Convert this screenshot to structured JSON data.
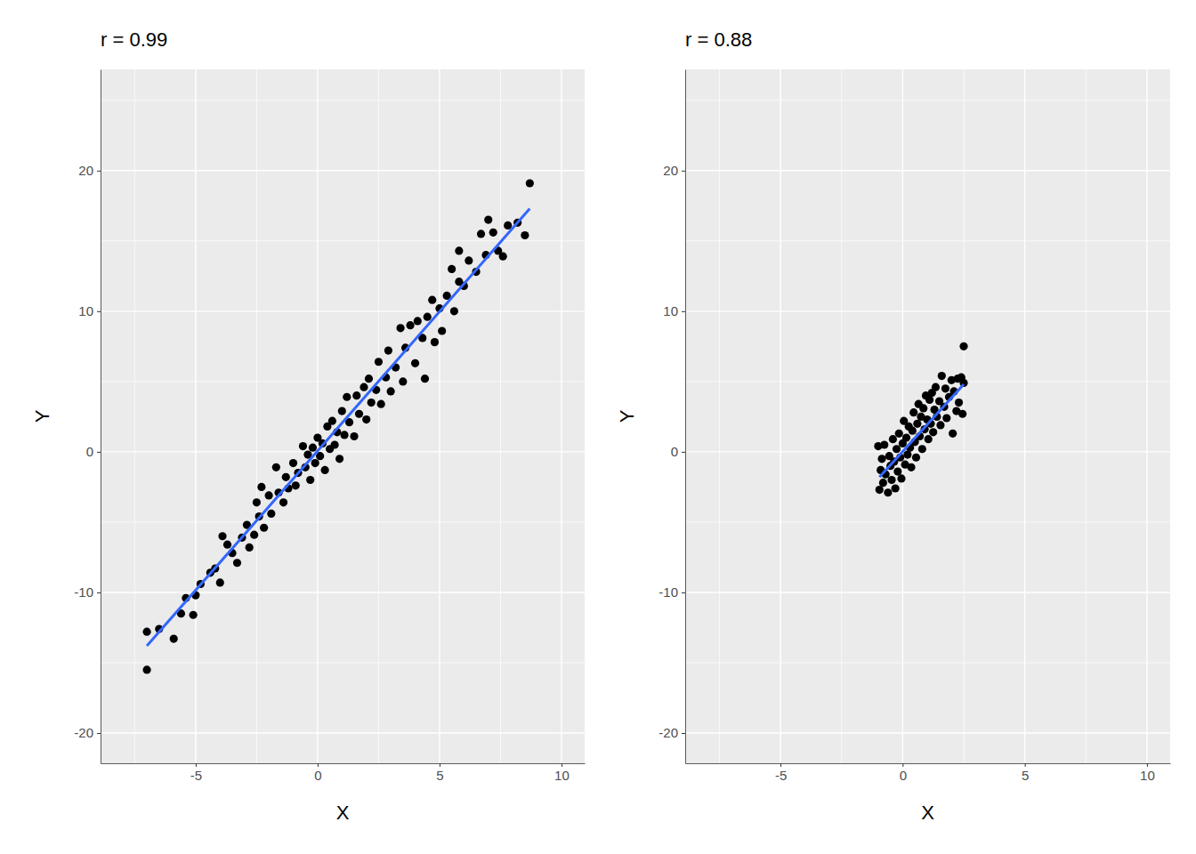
{
  "chart_data": [
    {
      "type": "scatter",
      "title": "r = 0.99",
      "x_label": "X",
      "y_label": "Y",
      "xlim": [
        -8.9,
        10.95
      ],
      "ylim": [
        -22.15,
        27.2
      ],
      "xticks": [
        -5,
        0,
        5,
        10
      ],
      "yticks": [
        -20,
        -10,
        0,
        10,
        20
      ],
      "grid": true,
      "series": [
        {
          "type": "scatter",
          "marker": "circle",
          "color": "#000000",
          "x": [
            -7.0,
            -7.0,
            -6.5,
            -5.9,
            -5.6,
            -5.4,
            -5.1,
            -5.0,
            -4.8,
            -4.4,
            -4.2,
            -4.0,
            -3.9,
            -3.7,
            -3.5,
            -3.3,
            -3.1,
            -2.9,
            -2.8,
            -2.6,
            -2.5,
            -2.4,
            -2.3,
            -2.2,
            -2.0,
            -1.9,
            -1.7,
            -1.6,
            -1.4,
            -1.3,
            -1.2,
            -1.0,
            -0.9,
            -0.8,
            -0.6,
            -0.5,
            -0.4,
            -0.3,
            -0.2,
            -0.1,
            0.0,
            0.1,
            0.2,
            0.3,
            0.4,
            0.5,
            0.6,
            0.7,
            0.8,
            0.9,
            1.0,
            1.1,
            1.2,
            1.3,
            1.5,
            1.6,
            1.7,
            1.9,
            2.0,
            2.1,
            2.2,
            2.4,
            2.5,
            2.6,
            2.8,
            2.9,
            3.0,
            3.2,
            3.4,
            3.5,
            3.6,
            3.8,
            4.0,
            4.1,
            4.3,
            4.4,
            4.5,
            4.7,
            4.8,
            5.0,
            5.1,
            5.3,
            5.5,
            5.6,
            5.8,
            5.8,
            6.0,
            6.2,
            6.5,
            6.7,
            6.9,
            7.0,
            7.2,
            7.4,
            7.6,
            7.8,
            8.2,
            8.5,
            8.7
          ],
          "values": [
            -15.5,
            -12.8,
            -12.6,
            -13.3,
            -11.5,
            -10.4,
            -11.6,
            -10.2,
            -9.4,
            -8.6,
            -8.3,
            -9.3,
            -6.0,
            -6.6,
            -7.2,
            -7.9,
            -6.1,
            -5.2,
            -6.8,
            -5.9,
            -3.6,
            -4.6,
            -2.5,
            -5.4,
            -3.1,
            -4.4,
            -1.1,
            -2.9,
            -3.6,
            -1.8,
            -2.6,
            -0.8,
            -2.4,
            -1.5,
            0.4,
            -1.1,
            -0.2,
            -2.0,
            0.3,
            -0.8,
            1.0,
            -0.3,
            0.6,
            -1.3,
            1.8,
            0.2,
            2.2,
            0.5,
            1.4,
            -0.5,
            2.9,
            1.2,
            3.9,
            2.1,
            1.1,
            4.0,
            2.7,
            4.6,
            2.3,
            5.2,
            3.5,
            4.4,
            6.4,
            3.4,
            5.3,
            7.2,
            4.3,
            6.0,
            8.8,
            5.0,
            7.4,
            9.0,
            6.3,
            9.3,
            8.1,
            5.2,
            9.6,
            10.8,
            7.8,
            10.2,
            8.6,
            11.1,
            13.0,
            10.0,
            12.1,
            14.3,
            11.8,
            13.6,
            12.8,
            15.5,
            14.0,
            16.5,
            15.6,
            14.3,
            13.9,
            16.1,
            16.3,
            15.4,
            19.1
          ]
        },
        {
          "type": "line",
          "line_style": "solid",
          "color": "#3366FF",
          "x": [
            -7.0,
            8.7
          ],
          "values": [
            -13.8,
            17.3
          ]
        }
      ]
    },
    {
      "type": "scatter",
      "title": "r = 0.88",
      "x_label": "X",
      "y_label": "Y",
      "xlim": [
        -8.9,
        10.95
      ],
      "ylim": [
        -22.15,
        27.2
      ],
      "xticks": [
        -5,
        0,
        5,
        10
      ],
      "yticks": [
        -20,
        -10,
        0,
        10,
        20
      ],
      "grid": true,
      "series": [
        {
          "type": "scatter",
          "marker": "circle",
          "color": "#000000",
          "x": [
            -1.0,
            -0.95,
            -0.9,
            -0.85,
            -0.8,
            -0.75,
            -0.7,
            -0.6,
            -0.55,
            -0.5,
            -0.45,
            -0.4,
            -0.35,
            -0.3,
            -0.25,
            -0.2,
            -0.15,
            -0.1,
            -0.05,
            0.0,
            0.05,
            0.1,
            0.15,
            0.2,
            0.25,
            0.3,
            0.35,
            0.4,
            0.45,
            0.5,
            0.55,
            0.6,
            0.65,
            0.7,
            0.75,
            0.8,
            0.85,
            0.9,
            0.95,
            1.0,
            1.05,
            1.1,
            1.15,
            1.2,
            1.25,
            1.3,
            1.35,
            1.4,
            1.5,
            1.55,
            1.6,
            1.7,
            1.75,
            1.8,
            1.9,
            2.0,
            2.05,
            2.1,
            2.2,
            2.25,
            2.3,
            2.4,
            2.45,
            2.5,
            2.5
          ],
          "values": [
            0.4,
            -2.7,
            -1.3,
            -0.5,
            -2.2,
            0.5,
            -1.6,
            -2.9,
            -0.3,
            -1.0,
            -2.0,
            0.9,
            -0.7,
            -2.6,
            0.2,
            -1.4,
            1.3,
            -0.4,
            -1.9,
            0.6,
            2.2,
            -0.9,
            1.0,
            -0.2,
            1.8,
            0.3,
            -1.1,
            1.5,
            2.8,
            0.7,
            -0.4,
            2.0,
            3.4,
            1.1,
            2.5,
            0.2,
            3.1,
            1.6,
            4.0,
            2.3,
            0.9,
            3.7,
            2.0,
            4.2,
            1.4,
            3.0,
            4.6,
            2.5,
            3.6,
            1.9,
            5.4,
            3.2,
            4.5,
            2.4,
            3.9,
            5.1,
            1.3,
            4.3,
            2.9,
            5.2,
            3.5,
            5.3,
            2.7,
            4.9,
            7.5
          ]
        },
        {
          "type": "line",
          "line_style": "solid",
          "color": "#3366FF",
          "x": [
            -0.95,
            2.5
          ],
          "values": [
            -1.8,
            4.8
          ]
        }
      ]
    }
  ]
}
